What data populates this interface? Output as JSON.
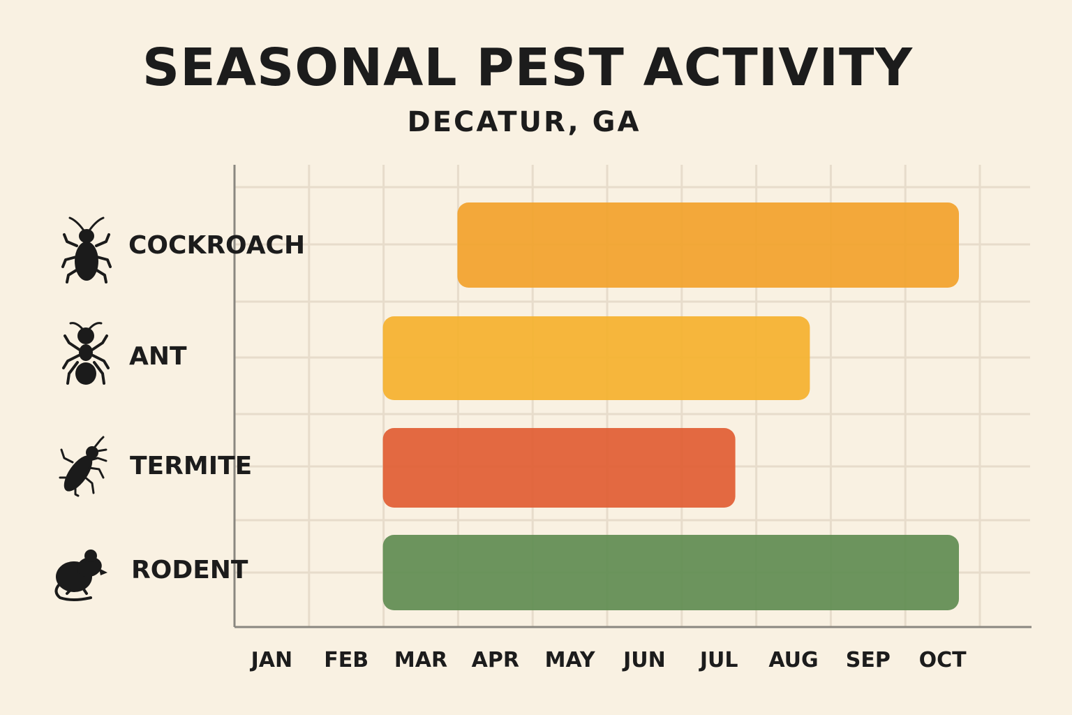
{
  "title": "SEASONAL PEST ACTIVITY",
  "subtitle": "DECATUR, GA",
  "chart_data": {
    "type": "bar",
    "orientation": "horizontal-range",
    "x_ticks": [
      "JAN",
      "FEB",
      "MAR",
      "APR",
      "MAY",
      "JUN",
      "JUL",
      "AUG",
      "SEP",
      "OCT"
    ],
    "grid": true,
    "series": [
      {
        "category": "COCKROACH",
        "icon": "cockroach-icon",
        "start": "APR",
        "end": "OCT",
        "color": "#f2a22b"
      },
      {
        "category": "ANT",
        "icon": "ant-icon",
        "start": "MAR",
        "end": "AUG",
        "color": "#f5b12e"
      },
      {
        "category": "TERMITE",
        "icon": "termite-icon",
        "start": "MAR",
        "end": "JUL",
        "color": "#e15d33"
      },
      {
        "category": "RODENT",
        "icon": "rodent-icon",
        "start": "MAR",
        "end": "OCT",
        "color": "#5f8c51"
      }
    ]
  }
}
